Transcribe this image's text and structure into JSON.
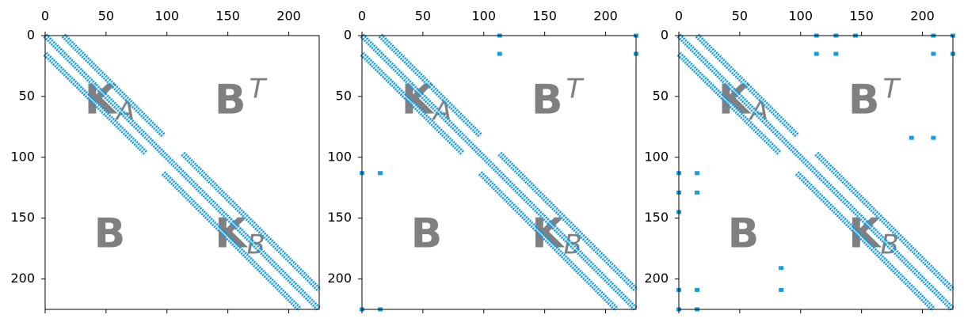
{
  "chart_data": [
    {
      "type": "spy",
      "color": "#1a9be0",
      "xlim": [
        0,
        225
      ],
      "ylim": [
        225,
        0
      ],
      "xticks": [
        0,
        50,
        100,
        150,
        200
      ],
      "yticks": [
        0,
        50,
        100,
        150,
        200
      ],
      "labels": [
        {
          "text": "K",
          "sub": "A"
        },
        {
          "text": "B",
          "sup": "T"
        },
        {
          "text": "B"
        },
        {
          "text": "K",
          "sub": "B"
        }
      ],
      "bands": [
        {
          "x": [
            15,
            97
          ],
          "y": [
            0,
            82
          ]
        },
        {
          "x": [
            0,
            97
          ],
          "y": [
            0,
            97
          ]
        },
        {
          "x": [
            0,
            83
          ],
          "y": [
            15,
            97
          ]
        },
        {
          "x": [
            113,
            225
          ],
          "y": [
            97,
            209
          ]
        },
        {
          "x": [
            97,
            225
          ],
          "y": [
            97,
            225
          ]
        },
        {
          "x": [
            97,
            209
          ],
          "y": [
            113,
            225
          ]
        }
      ],
      "points": {
        "x": [],
        "y": []
      }
    },
    {
      "type": "spy",
      "color": "#1a9be0",
      "xlim": [
        0,
        225
      ],
      "ylim": [
        225,
        0
      ],
      "xticks": [
        0,
        50,
        100,
        150,
        200
      ],
      "yticks": [
        0,
        50,
        100,
        150,
        200
      ],
      "labels": [
        {
          "text": "K",
          "sub": "A"
        },
        {
          "text": "B",
          "sup": "T"
        },
        {
          "text": "B"
        },
        {
          "text": "K",
          "sub": "B"
        }
      ],
      "bands": [
        {
          "x": [
            15,
            97
          ],
          "y": [
            0,
            82
          ]
        },
        {
          "x": [
            0,
            97
          ],
          "y": [
            0,
            97
          ]
        },
        {
          "x": [
            0,
            83
          ],
          "y": [
            15,
            97
          ]
        },
        {
          "x": [
            113,
            225
          ],
          "y": [
            97,
            209
          ]
        },
        {
          "x": [
            97,
            225
          ],
          "y": [
            97,
            225
          ]
        },
        {
          "x": [
            97,
            209
          ],
          "y": [
            113,
            225
          ]
        }
      ],
      "points": {
        "x": [
          113,
          113,
          225,
          225,
          0,
          15,
          0,
          15
        ],
        "y": [
          0,
          15,
          0,
          15,
          113,
          113,
          225,
          225
        ]
      }
    },
    {
      "type": "spy",
      "color": "#1a9be0",
      "xlim": [
        0,
        225
      ],
      "ylim": [
        225,
        0
      ],
      "xticks": [
        0,
        50,
        100,
        150,
        200
      ],
      "yticks": [
        0,
        50,
        100,
        150,
        200
      ],
      "labels": [
        {
          "text": "K",
          "sub": "A"
        },
        {
          "text": "B",
          "sup": "T"
        },
        {
          "text": "B"
        },
        {
          "text": "K",
          "sub": "B"
        }
      ],
      "bands": [
        {
          "x": [
            15,
            97
          ],
          "y": [
            0,
            82
          ]
        },
        {
          "x": [
            0,
            97
          ],
          "y": [
            0,
            97
          ]
        },
        {
          "x": [
            0,
            83
          ],
          "y": [
            15,
            97
          ]
        },
        {
          "x": [
            113,
            225
          ],
          "y": [
            97,
            209
          ]
        },
        {
          "x": [
            97,
            225
          ],
          "y": [
            97,
            225
          ]
        },
        {
          "x": [
            97,
            209
          ],
          "y": [
            113,
            225
          ]
        }
      ],
      "points": {
        "x": [
          113,
          113,
          129,
          129,
          145,
          209,
          209,
          225,
          225,
          191,
          209,
          0,
          15,
          0,
          15,
          0,
          0,
          15,
          0,
          15,
          84,
          84
        ],
        "y": [
          0,
          15,
          0,
          15,
          0,
          0,
          15,
          0,
          15,
          84,
          84,
          113,
          113,
          129,
          129,
          145,
          209,
          209,
          225,
          225,
          191,
          209
        ]
      }
    }
  ]
}
